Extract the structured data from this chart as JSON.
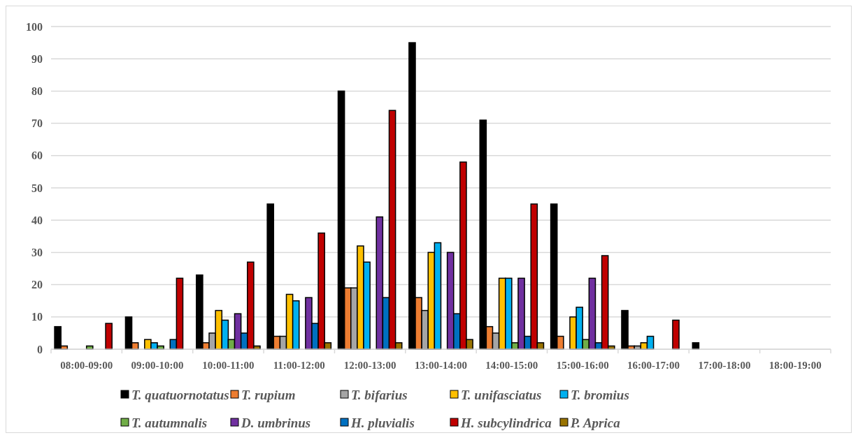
{
  "chart_data": {
    "type": "bar",
    "categories": [
      "08:00-09:00",
      "09:00-10:00",
      "10:00-11:00",
      "11:00-12:00",
      "12:00-13:00",
      "13:00-14:00",
      "14:00-15:00",
      "15:00-16:00",
      "16:00-17:00",
      "17:00-18:00",
      "18:00-19:00"
    ],
    "series": [
      {
        "name": "T. quatuornotatus",
        "color": "#000000",
        "values": [
          7,
          10,
          23,
          45,
          80,
          95,
          71,
          45,
          12,
          2,
          0
        ]
      },
      {
        "name": "T. rupium",
        "color": "#ed7d31",
        "values": [
          1,
          2,
          2,
          4,
          19,
          16,
          7,
          4,
          1,
          0,
          0
        ]
      },
      {
        "name": "T. bifarius",
        "color": "#a5a5a5",
        "values": [
          0,
          0,
          5,
          4,
          19,
          12,
          5,
          0,
          1,
          0,
          0
        ]
      },
      {
        "name": "T. unifasciatus",
        "color": "#ffc000",
        "values": [
          0,
          3,
          12,
          17,
          32,
          30,
          22,
          10,
          2,
          0,
          0
        ]
      },
      {
        "name": "T. bromius",
        "color": "#00b0f0",
        "values": [
          0,
          2,
          9,
          15,
          27,
          33,
          22,
          13,
          4,
          0,
          0
        ]
      },
      {
        "name": "T. autumnalis",
        "color": "#70ad47",
        "values": [
          1,
          1,
          3,
          0,
          0,
          0,
          2,
          3,
          0,
          0,
          0
        ]
      },
      {
        "name": "D. umbrinus",
        "color": "#7030a0",
        "values": [
          0,
          0,
          11,
          16,
          41,
          30,
          22,
          22,
          0,
          0,
          0
        ]
      },
      {
        "name": "H. pluvialis",
        "color": "#0070c0",
        "values": [
          0,
          3,
          5,
          8,
          16,
          11,
          4,
          2,
          0,
          0,
          0
        ]
      },
      {
        "name": "H. subcylindrica",
        "color": "#c00000",
        "values": [
          8,
          22,
          27,
          36,
          74,
          58,
          45,
          29,
          9,
          0,
          0
        ]
      },
      {
        "name": "P. Aprica",
        "color": "#997300",
        "values": [
          0,
          0,
          1,
          2,
          2,
          3,
          2,
          1,
          0,
          0,
          0
        ]
      }
    ],
    "ylim": [
      0,
      100
    ],
    "yticks": [
      0,
      10,
      20,
      30,
      40,
      50,
      60,
      70,
      80,
      90,
      100
    ],
    "grid": "y",
    "legend": "bottom"
  }
}
